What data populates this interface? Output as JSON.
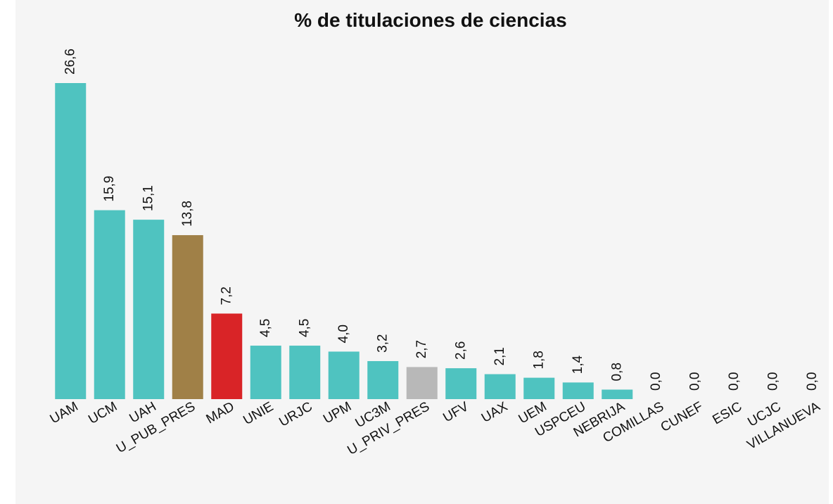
{
  "chart_data": {
    "type": "bar",
    "title": "% de titulaciones de ciencias",
    "categories": [
      "UAM",
      "UCM",
      "UAH",
      "U_PUB_PRES",
      "MAD",
      "UNIE",
      "URJC",
      "UPM",
      "UC3M",
      "U_PRIV_PRES",
      "UFV",
      "UAX",
      "UEM",
      "USPCEU",
      "NEBRIJA",
      "COMILLAS",
      "CUNEF",
      "ESIC",
      "UCJC",
      "VILLANUEVA"
    ],
    "values": [
      26.6,
      15.9,
      15.1,
      13.8,
      7.2,
      4.5,
      4.5,
      4.0,
      3.2,
      2.7,
      2.6,
      2.1,
      1.8,
      1.4,
      0.8,
      0.0,
      0.0,
      0.0,
      0.0,
      0.0
    ],
    "value_labels": [
      "26,6",
      "15,9",
      "15,1",
      "13,8",
      "7,2",
      "4,5",
      "4,5",
      "4,0",
      "3,2",
      "2,7",
      "2,6",
      "2,1",
      "1,8",
      "1,4",
      "0,8",
      "0,0",
      "0,0",
      "0,0",
      "0,0",
      "0,0"
    ],
    "colors": [
      "#4fc3c0",
      "#4fc3c0",
      "#4fc3c0",
      "#a08047",
      "#d92427",
      "#4fc3c0",
      "#4fc3c0",
      "#4fc3c0",
      "#4fc3c0",
      "#b8b8b8",
      "#4fc3c0",
      "#4fc3c0",
      "#4fc3c0",
      "#4fc3c0",
      "#4fc3c0",
      "#4fc3c0",
      "#4fc3c0",
      "#4fc3c0",
      "#4fc3c0",
      "#4fc3c0"
    ]
  }
}
